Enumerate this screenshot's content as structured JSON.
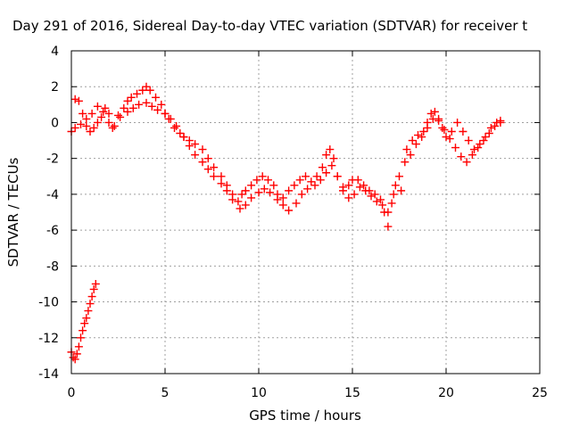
{
  "chart_data": {
    "type": "scatter",
    "title": "Day 291 of 2016, Sidereal Day-to-day VTEC variation (SDTVAR) for receiver t",
    "xlabel": "GPS time / hours",
    "ylabel": "SDTVAR / TECUs",
    "xlim": [
      0,
      25
    ],
    "ylim": [
      -14,
      4
    ],
    "xticks": [
      0,
      5,
      10,
      15,
      20,
      25
    ],
    "yticks": [
      -14,
      -12,
      -10,
      -8,
      -6,
      -4,
      -2,
      0,
      2,
      4
    ],
    "grid": true,
    "marker": "plus",
    "color": "#ff0000",
    "series": [
      {
        "x": [
          0.0,
          0.2,
          0.4,
          0.6,
          0.8,
          1.0,
          1.2,
          1.4,
          1.6,
          1.8,
          2.0,
          2.2,
          2.5,
          2.8,
          3.0,
          3.2,
          3.5,
          3.8,
          4.0,
          4.2,
          4.5,
          4.8,
          5.0,
          5.2,
          5.5,
          5.8,
          6.0,
          6.3,
          6.6,
          7.0,
          7.3,
          7.6,
          8.0,
          8.3,
          8.6,
          8.9,
          9.1,
          9.3,
          9.6,
          9.9,
          10.2,
          10.5,
          10.8,
          11.0,
          11.3,
          11.6,
          11.9,
          12.2,
          12.5,
          12.8,
          13.1,
          13.4,
          13.6,
          13.8,
          14.0,
          14.2,
          14.5,
          14.8,
          15.0,
          15.3,
          15.6,
          15.9,
          16.2,
          16.5,
          16.7,
          16.9,
          17.1,
          17.3,
          17.6,
          17.9,
          18.2,
          18.5,
          18.8,
          19.0,
          19.2,
          19.4,
          19.6,
          19.8,
          20.0,
          20.3,
          20.6,
          20.9,
          21.2,
          21.5,
          21.8,
          22.1,
          22.4,
          22.7,
          22.9
        ],
        "y": [
          -0.5,
          1.3,
          1.2,
          0.5,
          -0.2,
          -0.5,
          -0.3,
          0.0,
          0.3,
          0.8,
          0.5,
          -0.3,
          0.4,
          0.8,
          1.2,
          1.4,
          1.6,
          1.8,
          2.0,
          1.8,
          1.4,
          1.0,
          0.5,
          0.2,
          -0.3,
          -0.6,
          -0.8,
          -1.0,
          -1.2,
          -1.5,
          -2.0,
          -2.5,
          -3.0,
          -3.5,
          -4.0,
          -4.4,
          -4.0,
          -3.8,
          -3.5,
          -3.2,
          -3.0,
          -3.2,
          -3.5,
          -4.0,
          -4.2,
          -3.8,
          -3.5,
          -3.2,
          -3.0,
          -3.3,
          -3.0,
          -2.5,
          -1.8,
          -1.5,
          -2.0,
          -3.0,
          -3.8,
          -3.5,
          -3.2,
          -3.2,
          -3.5,
          -3.8,
          -4.0,
          -4.3,
          -5.0,
          -5.8,
          -4.5,
          -3.5,
          -3.8,
          -1.5,
          -1.0,
          -0.7,
          -0.5,
          0.0,
          0.5,
          0.6,
          0.2,
          -0.3,
          -0.8,
          -0.5,
          0.0,
          -0.5,
          -1.0,
          -1.5,
          -1.2,
          -0.8,
          -0.3,
          0.0,
          0.1
        ]
      },
      {
        "x": [
          0.2,
          0.5,
          0.8,
          1.1,
          1.4,
          1.7,
          2.0,
          2.3,
          2.6,
          3.0,
          3.3,
          3.6,
          4.0,
          4.3,
          4.6,
          5.0,
          5.3,
          5.6,
          6.0,
          6.3,
          6.6,
          7.0,
          7.3,
          7.6,
          8.0,
          8.3,
          8.6,
          9.0,
          9.3,
          9.6,
          10.0,
          10.3,
          10.6,
          11.0,
          11.3,
          11.6,
          12.0,
          12.3,
          12.6,
          13.0,
          13.3,
          13.6,
          13.9,
          14.2,
          14.5,
          14.8,
          15.1,
          15.4,
          15.7,
          16.0,
          16.3,
          16.6,
          16.9,
          17.2,
          17.5,
          17.8,
          18.1,
          18.4,
          18.7,
          19.0,
          19.3,
          19.6,
          19.9,
          20.2,
          20.5,
          20.8,
          21.1,
          21.4,
          21.7,
          22.0,
          22.3,
          22.6,
          22.9
        ],
        "y": [
          -0.3,
          -0.1,
          0.2,
          0.5,
          0.9,
          0.6,
          0.0,
          -0.2,
          0.3,
          0.6,
          0.8,
          1.0,
          1.1,
          0.9,
          0.7,
          0.5,
          0.2,
          -0.2,
          -0.8,
          -1.3,
          -1.8,
          -2.2,
          -2.6,
          -3.0,
          -3.4,
          -3.8,
          -4.3,
          -4.8,
          -4.6,
          -4.2,
          -3.9,
          -3.7,
          -3.9,
          -4.3,
          -4.6,
          -4.9,
          -4.5,
          -4.0,
          -3.7,
          -3.5,
          -3.2,
          -2.8,
          -2.4,
          -3.0,
          -3.6,
          -4.2,
          -4.0,
          -3.6,
          -3.8,
          -4.1,
          -4.4,
          -4.6,
          -5.0,
          -4.0,
          -3.0,
          -2.2,
          -1.8,
          -1.2,
          -0.8,
          -0.3,
          0.2,
          0.1,
          -0.4,
          -0.9,
          -1.4,
          -1.9,
          -2.2,
          -1.8,
          -1.4,
          -1.0,
          -0.6,
          -0.2,
          0.0
        ]
      },
      {
        "x": [
          0.0,
          0.1,
          0.2,
          0.3,
          0.4,
          0.5,
          0.6,
          0.7,
          0.8,
          0.9,
          1.0,
          1.1,
          1.2,
          1.3
        ],
        "y": [
          -12.8,
          -13.1,
          -13.2,
          -12.9,
          -12.5,
          -12.0,
          -11.6,
          -11.2,
          -10.9,
          -10.5,
          -10.1,
          -9.7,
          -9.3,
          -9.0
        ]
      }
    ]
  }
}
